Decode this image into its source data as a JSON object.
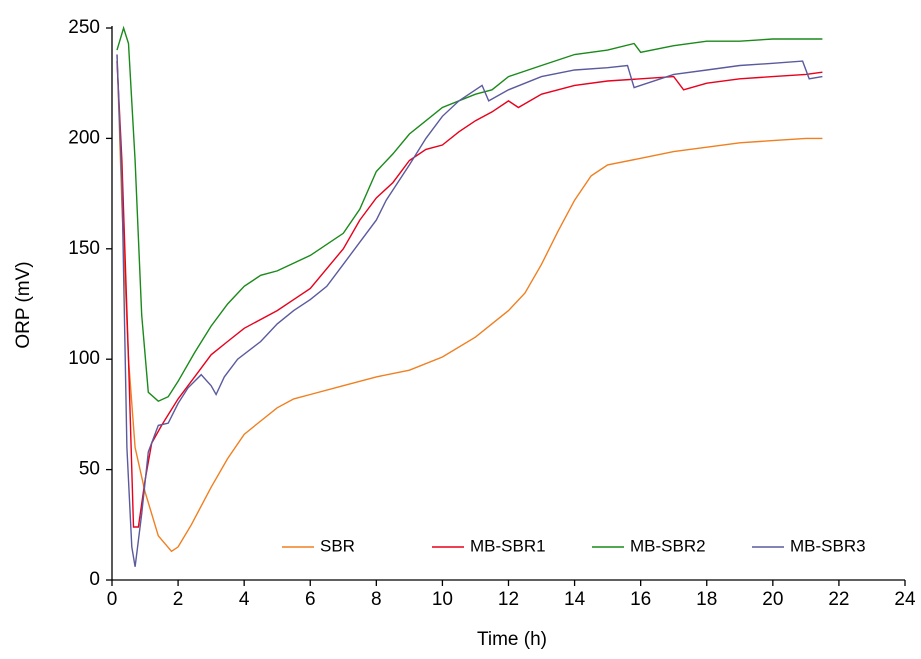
{
  "chart_data": {
    "type": "line",
    "xlabel": "Time (h)",
    "ylabel": "ORP (mV)",
    "xlim": [
      0,
      24
    ],
    "xticks": [
      0,
      2,
      4,
      6,
      8,
      10,
      12,
      14,
      16,
      18,
      20,
      22,
      24
    ],
    "ylim": [
      0,
      250
    ],
    "yticks": [
      0,
      50,
      100,
      150,
      200,
      250
    ],
    "grid": false,
    "legend": "lower right",
    "series": [
      {
        "name": "SBR",
        "color": "#f07f20",
        "x": [
          0.15,
          0.3,
          0.5,
          0.7,
          1.0,
          1.4,
          1.8,
          2.0,
          2.4,
          3.0,
          3.5,
          4.0,
          4.5,
          5.0,
          5.5,
          6.0,
          7.0,
          8.0,
          9.0,
          10.0,
          11.0,
          12.0,
          12.5,
          13.0,
          13.5,
          14.0,
          14.5,
          15.0,
          16.0,
          17.0,
          18.0,
          19.0,
          20.0,
          21.0,
          21.5
        ],
        "values": [
          238,
          170,
          100,
          60,
          40,
          20,
          13,
          15,
          25,
          42,
          55,
          66,
          72,
          78,
          82,
          84,
          88,
          92,
          95,
          101,
          110,
          122,
          130,
          143,
          158,
          172,
          183,
          188,
          191,
          194,
          196,
          198,
          199,
          200,
          200
        ]
      },
      {
        "name": "MB-SBR1",
        "color": "#e8001c",
        "x": [
          0.15,
          0.3,
          0.5,
          0.65,
          0.8,
          1.0,
          1.2,
          1.5,
          2.0,
          2.5,
          3.0,
          3.5,
          4.0,
          5.0,
          5.5,
          6.0,
          7.0,
          7.5,
          8.0,
          8.5,
          9.0,
          9.5,
          10.0,
          10.5,
          11.0,
          11.5,
          12.0,
          12.3,
          13.0,
          14.0,
          15.0,
          16.0,
          17.0,
          17.3,
          18.0,
          19.0,
          20.0,
          21.0,
          21.5
        ],
        "values": [
          235,
          190,
          100,
          24,
          24,
          45,
          62,
          70,
          82,
          92,
          102,
          108,
          114,
          122,
          127,
          132,
          150,
          163,
          173,
          180,
          190,
          195,
          197,
          203,
          208,
          212,
          217,
          214,
          220,
          224,
          226,
          227,
          228,
          222,
          225,
          227,
          228,
          229,
          230
        ]
      },
      {
        "name": "MB-SBR2",
        "color": "#1a8a1a",
        "x": [
          0.15,
          0.35,
          0.5,
          0.7,
          0.9,
          1.1,
          1.4,
          1.7,
          2.0,
          2.5,
          3.0,
          3.5,
          4.0,
          4.5,
          5.0,
          6.0,
          7.0,
          7.5,
          8.0,
          8.5,
          9.0,
          10.0,
          11.0,
          11.5,
          12.0,
          13.0,
          14.0,
          15.0,
          15.8,
          16.0,
          17.0,
          18.0,
          19.0,
          20.0,
          21.5
        ],
        "values": [
          240,
          250,
          243,
          190,
          120,
          85,
          81,
          83,
          90,
          103,
          115,
          125,
          133,
          138,
          140,
          147,
          157,
          168,
          185,
          193,
          202,
          214,
          220,
          222,
          228,
          233,
          238,
          240,
          243,
          239,
          242,
          244,
          244,
          245,
          245
        ]
      },
      {
        "name": "MB-SBR3",
        "color": "#5a5a9e",
        "x": [
          0.15,
          0.3,
          0.45,
          0.6,
          0.7,
          0.9,
          1.1,
          1.4,
          1.7,
          2.0,
          2.3,
          2.7,
          3.0,
          3.15,
          3.4,
          3.8,
          4.5,
          5.0,
          5.5,
          6.0,
          6.5,
          7.0,
          7.5,
          8.0,
          8.3,
          9.0,
          9.5,
          10.0,
          10.5,
          11.0,
          11.2,
          11.4,
          12.0,
          13.0,
          14.0,
          15.0,
          15.6,
          15.8,
          17.0,
          18.0,
          19.0,
          20.0,
          20.9,
          21.1,
          21.5
        ],
        "values": [
          238,
          180,
          60,
          15,
          6,
          30,
          58,
          70,
          71,
          80,
          87,
          93,
          88,
          84,
          92,
          100,
          108,
          116,
          122,
          127,
          133,
          143,
          153,
          163,
          172,
          188,
          200,
          210,
          217,
          222,
          224,
          217,
          222,
          228,
          231,
          232,
          233,
          223,
          229,
          231,
          233,
          234,
          235,
          227,
          228
        ]
      }
    ]
  }
}
